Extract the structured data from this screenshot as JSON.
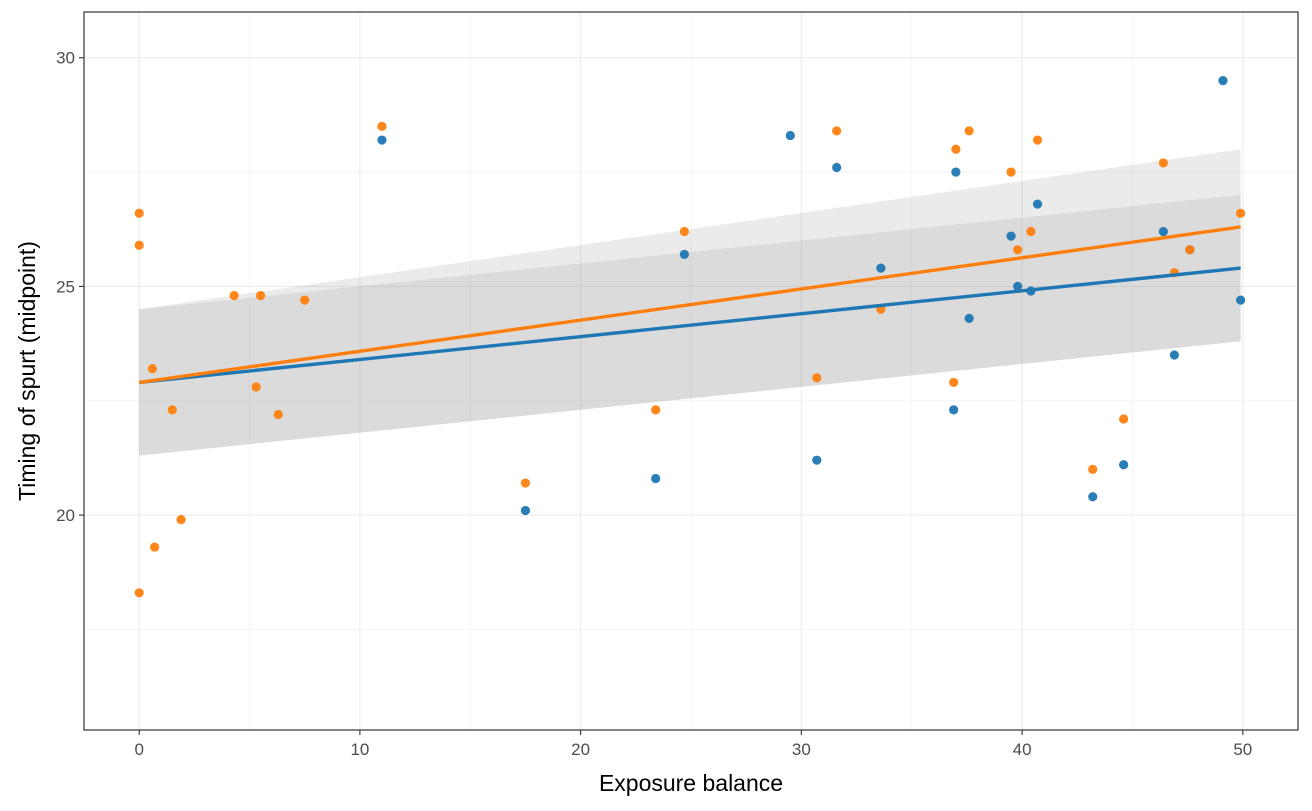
{
  "chart_data": {
    "type": "scatter",
    "title": "",
    "xlabel": "Exposure balance",
    "ylabel": "Timing of spurt (midpoint)",
    "xlim": [
      -2.5,
      52.5
    ],
    "ylim": [
      15.3,
      31.0
    ],
    "x_ticks": [
      0,
      10,
      20,
      30,
      40,
      50
    ],
    "y_ticks": [
      20,
      25,
      30
    ],
    "grid": true,
    "legend": "none",
    "series": [
      {
        "color": "#1f77b4",
        "points": [
          {
            "x": 11.0,
            "y": 28.2
          },
          {
            "x": 17.5,
            "y": 20.1
          },
          {
            "x": 23.4,
            "y": 20.8
          },
          {
            "x": 24.7,
            "y": 25.7
          },
          {
            "x": 29.5,
            "y": 28.3
          },
          {
            "x": 30.7,
            "y": 21.2
          },
          {
            "x": 31.6,
            "y": 27.6
          },
          {
            "x": 33.6,
            "y": 25.4
          },
          {
            "x": 36.9,
            "y": 22.3
          },
          {
            "x": 37.0,
            "y": 27.5
          },
          {
            "x": 37.6,
            "y": 24.3
          },
          {
            "x": 39.5,
            "y": 26.1
          },
          {
            "x": 39.8,
            "y": 25.0
          },
          {
            "x": 40.4,
            "y": 24.9
          },
          {
            "x": 40.7,
            "y": 26.8
          },
          {
            "x": 43.2,
            "y": 20.4
          },
          {
            "x": 44.6,
            "y": 21.1
          },
          {
            "x": 46.4,
            "y": 26.2
          },
          {
            "x": 46.9,
            "y": 23.5
          },
          {
            "x": 47.6,
            "y": 25.8
          },
          {
            "x": 49.1,
            "y": 29.5
          },
          {
            "x": 49.9,
            "y": 24.7
          }
        ],
        "fit": {
          "x": [
            0,
            49.9
          ],
          "y": [
            22.9,
            25.4
          ],
          "ci_lower": [
            21.3,
            23.8
          ],
          "ci_upper": [
            24.5,
            27.0
          ]
        }
      },
      {
        "color": "#ff7f0e",
        "points": [
          {
            "x": 0.0,
            "y": 26.6
          },
          {
            "x": 0.0,
            "y": 25.9
          },
          {
            "x": 0.0,
            "y": 18.3
          },
          {
            "x": 0.6,
            "y": 23.2
          },
          {
            "x": 0.7,
            "y": 19.3
          },
          {
            "x": 1.5,
            "y": 22.3
          },
          {
            "x": 1.9,
            "y": 19.9
          },
          {
            "x": 4.3,
            "y": 24.8
          },
          {
            "x": 5.3,
            "y": 22.8
          },
          {
            "x": 5.5,
            "y": 24.8
          },
          {
            "x": 6.3,
            "y": 22.2
          },
          {
            "x": 7.5,
            "y": 24.7
          },
          {
            "x": 11.0,
            "y": 28.5
          },
          {
            "x": 17.5,
            "y": 20.7
          },
          {
            "x": 23.4,
            "y": 22.3
          },
          {
            "x": 24.7,
            "y": 26.2
          },
          {
            "x": 30.7,
            "y": 23.0
          },
          {
            "x": 31.6,
            "y": 28.4
          },
          {
            "x": 33.6,
            "y": 24.5
          },
          {
            "x": 36.9,
            "y": 22.9
          },
          {
            "x": 37.0,
            "y": 28.0
          },
          {
            "x": 37.6,
            "y": 28.4
          },
          {
            "x": 39.5,
            "y": 27.5
          },
          {
            "x": 39.8,
            "y": 25.8
          },
          {
            "x": 40.4,
            "y": 26.2
          },
          {
            "x": 40.7,
            "y": 28.2
          },
          {
            "x": 43.2,
            "y": 21.0
          },
          {
            "x": 44.6,
            "y": 22.1
          },
          {
            "x": 46.4,
            "y": 27.7
          },
          {
            "x": 46.9,
            "y": 25.3
          },
          {
            "x": 47.6,
            "y": 25.8
          },
          {
            "x": 49.9,
            "y": 26.6
          }
        ],
        "fit": {
          "x": [
            0,
            49.9
          ],
          "y": [
            22.9,
            26.3
          ],
          "ci_lower": [
            21.3,
            23.8
          ],
          "ci_upper": [
            24.5,
            28.0
          ]
        }
      }
    ]
  }
}
